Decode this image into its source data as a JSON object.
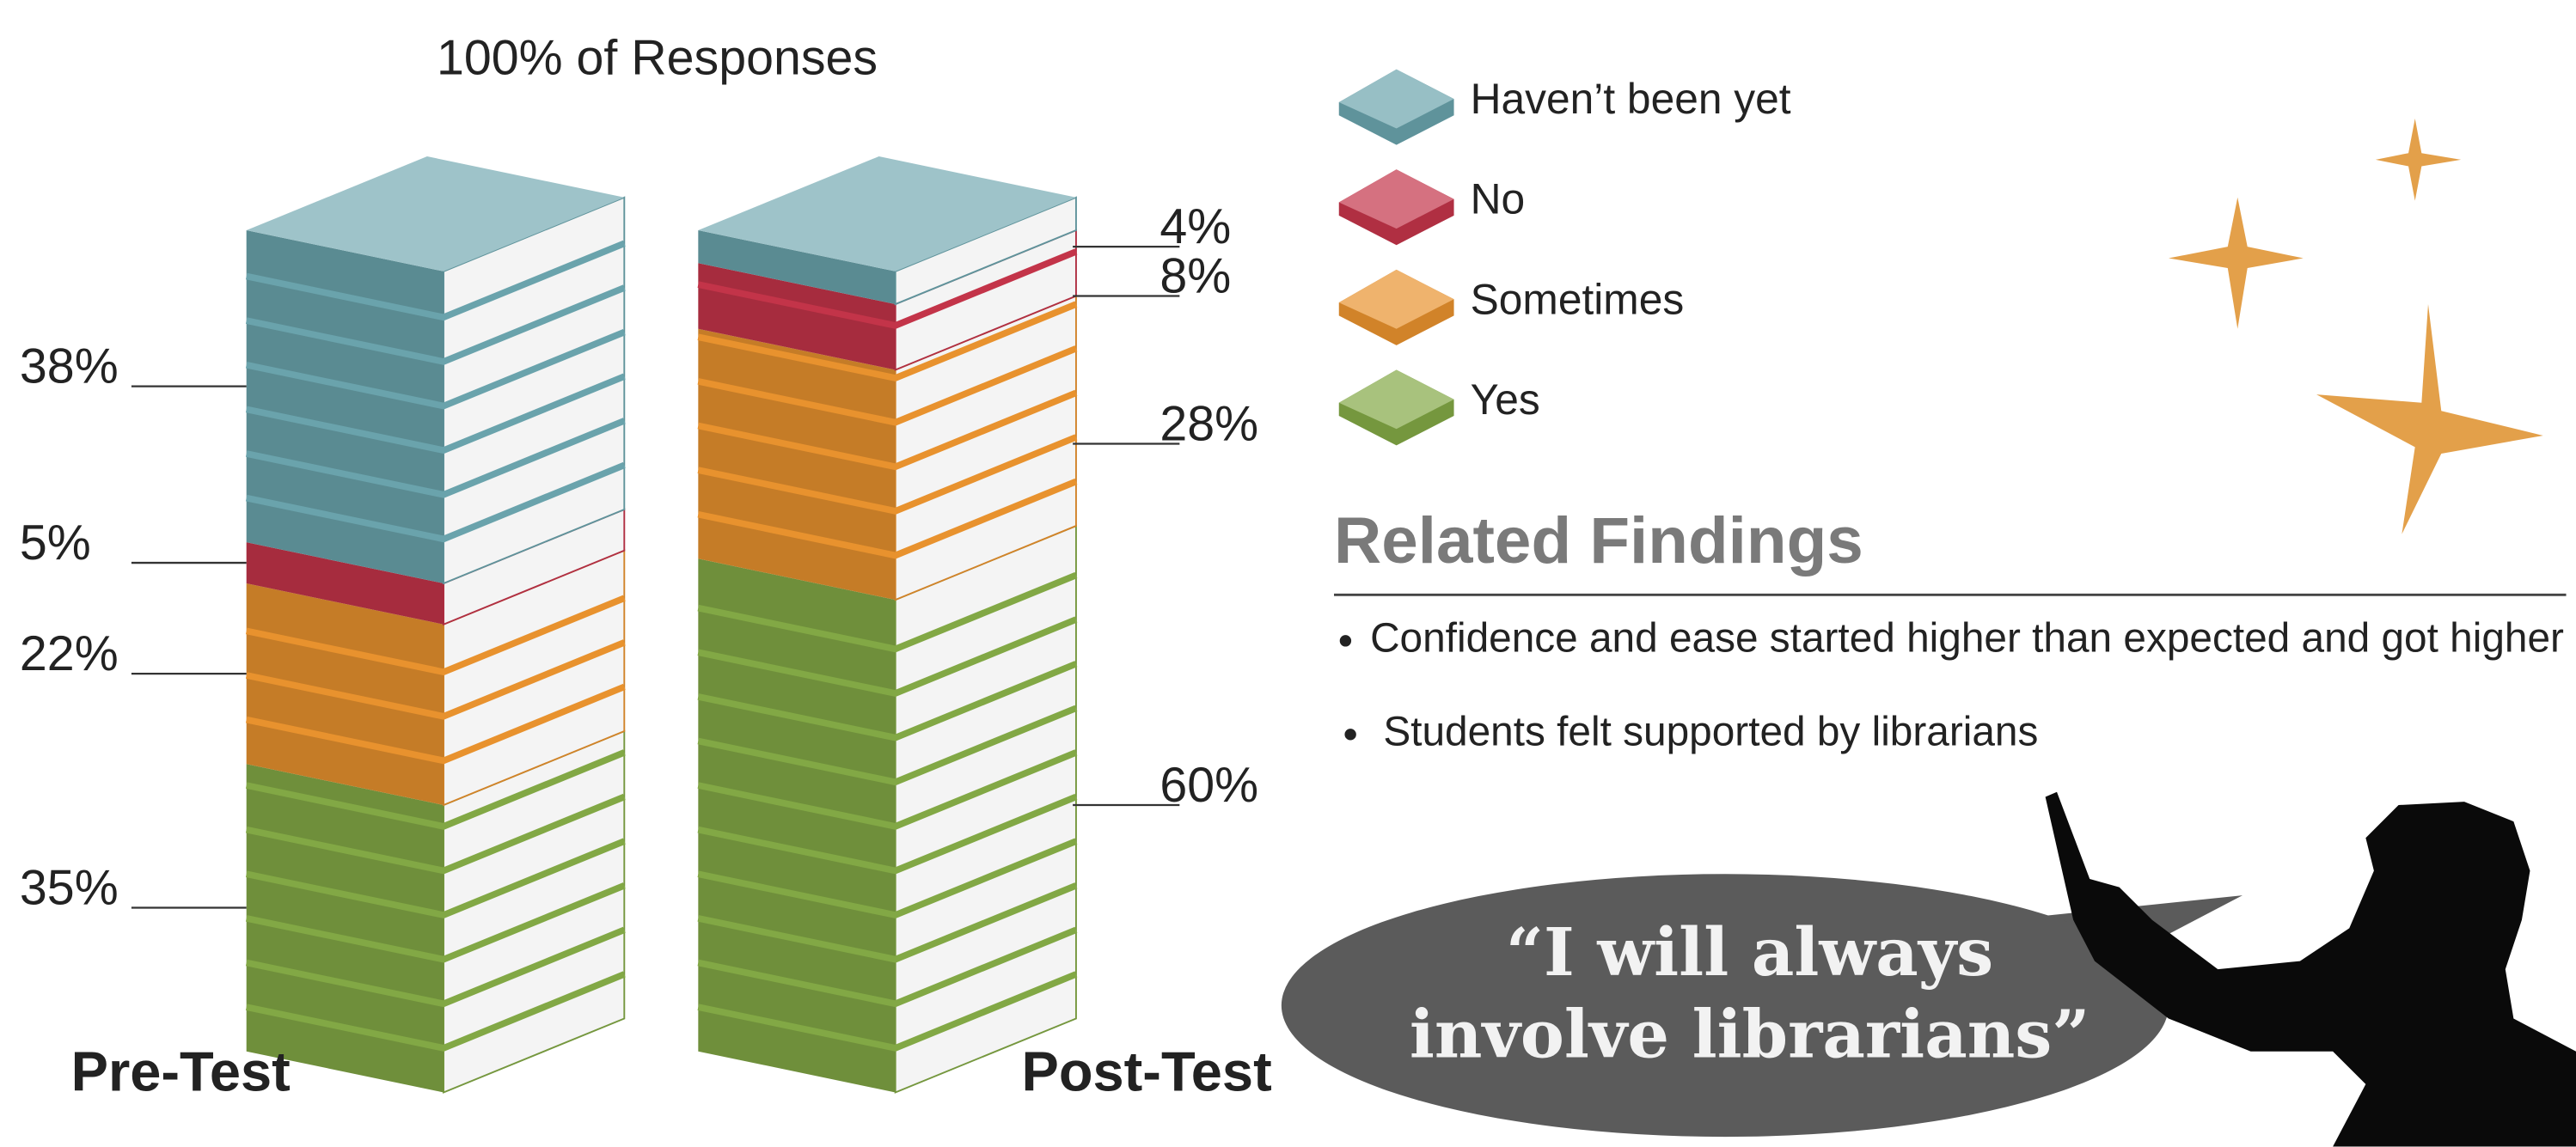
{
  "chart_data": {
    "type": "stacked-books",
    "title": "100% of Responses",
    "categories": [
      "Pre-Test",
      "Post-Test"
    ],
    "series": [
      {
        "name": "Haven’t been yet",
        "color": "#6aa3ac",
        "values": [
          38,
          4
        ],
        "value_labels": [
          "38%",
          "4%"
        ]
      },
      {
        "name": "No",
        "color": "#c33449",
        "values": [
          5,
          8
        ],
        "value_labels": [
          "5%",
          "8%"
        ]
      },
      {
        "name": "Sometimes",
        "color": "#e8922e",
        "values": [
          22,
          28
        ],
        "value_labels": [
          "22%",
          "28%"
        ]
      },
      {
        "name": "Yes",
        "color": "#82a845",
        "values": [
          35,
          60
        ],
        "value_labels": [
          "35%",
          "60%"
        ]
      }
    ]
  },
  "related_findings": {
    "title": "Related Findings",
    "items": [
      "Confidence and ease started higher than expected and got higher",
      "Students felt supported by librarians"
    ]
  },
  "quote": [
    "“I will always",
    "involve librarians”"
  ]
}
